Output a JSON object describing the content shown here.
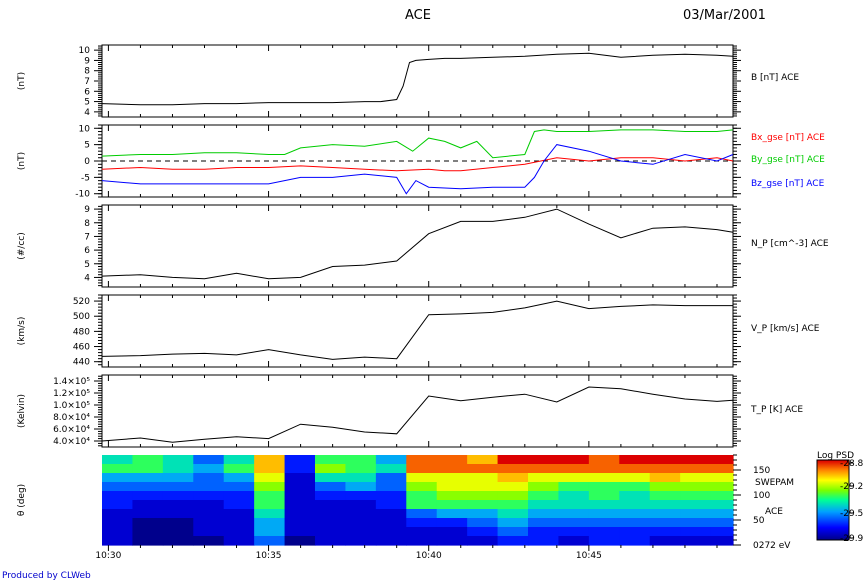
{
  "header": {
    "title": "ACE",
    "date": "03/Mar/2001"
  },
  "footer": {
    "produced_by": "Produced by CLWeb"
  },
  "time_axis": {
    "ticks": [
      "10:30",
      "10:35",
      "10:40",
      "10:45"
    ],
    "tick_minutes": [
      30,
      35,
      40,
      45
    ],
    "range_minutes": [
      29.8,
      49.5
    ]
  },
  "colors": {
    "bx": "#ff0000",
    "by": "#00cc00",
    "bz": "#0000ff",
    "line": "#000000"
  },
  "chart_data": [
    {
      "type": "line",
      "ylabel": "(nT)",
      "ylim": [
        3.5,
        10.5
      ],
      "yticks": [
        4,
        5,
        6,
        7,
        8,
        9,
        10
      ],
      "legend": [
        {
          "text": "B [nT] ACE",
          "color": "#000000"
        }
      ],
      "series": [
        {
          "name": "B [nT] ACE",
          "x": [
            29.8,
            31,
            32,
            33,
            34,
            35,
            36,
            37,
            38,
            38.5,
            39,
            39.2,
            39.4,
            39.6,
            40,
            40.5,
            41,
            42,
            43,
            44,
            45,
            45.5,
            46,
            47,
            48,
            49,
            49.5
          ],
          "y": [
            4.8,
            4.7,
            4.7,
            4.8,
            4.8,
            4.9,
            4.9,
            4.9,
            5.0,
            5.0,
            5.2,
            6.5,
            8.8,
            9.0,
            9.1,
            9.2,
            9.2,
            9.3,
            9.4,
            9.6,
            9.7,
            9.5,
            9.3,
            9.5,
            9.6,
            9.5,
            9.4
          ]
        }
      ]
    },
    {
      "type": "line",
      "ylabel": "(nT)",
      "ylim": [
        -11,
        11
      ],
      "yticks": [
        -10,
        -5,
        0,
        5,
        10
      ],
      "legend": [
        {
          "text": "Bx_gse [nT] ACE",
          "color": "#ff0000"
        },
        {
          "text": "By_gse [nT] ACE",
          "color": "#00cc00"
        },
        {
          "text": "Bz_gse [nT] ACE",
          "color": "#0000ff"
        }
      ],
      "zero_line": true,
      "series": [
        {
          "name": "Bx_gse [nT] ACE",
          "x": [
            29.8,
            31,
            32,
            33,
            34,
            35,
            36,
            37,
            38,
            39,
            40,
            40.5,
            41,
            42,
            43,
            43.5,
            44,
            45,
            46,
            47,
            48,
            49,
            49.5
          ],
          "y": [
            -2.5,
            -2,
            -2.5,
            -2.5,
            -2,
            -2,
            -1.5,
            -2,
            -2.5,
            -3,
            -2.5,
            -3,
            -3,
            -2,
            -1,
            0,
            1,
            0,
            1,
            1,
            0,
            1,
            0
          ]
        },
        {
          "name": "By_gse [nT] ACE",
          "x": [
            29.8,
            31,
            32,
            33,
            34,
            35,
            35.5,
            36,
            37,
            38,
            39,
            39.5,
            40,
            40.5,
            41,
            41.5,
            42,
            43,
            43.3,
            43.6,
            44,
            45,
            46,
            47,
            48,
            49,
            49.5
          ],
          "y": [
            1.5,
            2,
            2,
            2.5,
            2.5,
            2,
            2,
            4,
            5,
            4.5,
            6,
            3,
            7,
            6,
            4,
            6,
            1,
            2,
            9,
            9.5,
            9,
            9,
            9.5,
            9.5,
            9,
            9,
            9.5
          ]
        },
        {
          "name": "Bz_gse [nT] ACE",
          "x": [
            29.8,
            31,
            32,
            33,
            34,
            35,
            35.5,
            36,
            37,
            38,
            39,
            39.3,
            39.6,
            40,
            41,
            42,
            43,
            43.3,
            43.6,
            44,
            45,
            46,
            47,
            48,
            49,
            49.5
          ],
          "y": [
            -6,
            -7,
            -7,
            -7,
            -7,
            -7,
            -6,
            -5,
            -5,
            -4,
            -5,
            -10,
            -6,
            -8,
            -8.5,
            -8,
            -8,
            -5,
            0,
            5,
            3,
            0,
            -1,
            2,
            0,
            2
          ]
        }
      ]
    },
    {
      "type": "line",
      "ylabel": "(#/cc)",
      "ylim": [
        3.3,
        9.3
      ],
      "yticks": [
        4,
        5,
        6,
        7,
        8,
        9
      ],
      "legend": [
        {
          "text": "N_P [cm^-3] ACE",
          "color": "#000000"
        }
      ],
      "series": [
        {
          "name": "N_P [cm^-3] ACE",
          "x": [
            29.8,
            31,
            32,
            33,
            34,
            35,
            36,
            37,
            38,
            39,
            40,
            41,
            42,
            43,
            44,
            45,
            46,
            47,
            48,
            49,
            49.5
          ],
          "y": [
            4.1,
            4.2,
            4.0,
            3.9,
            4.3,
            3.9,
            4.0,
            4.8,
            4.9,
            5.2,
            7.2,
            8.1,
            8.1,
            8.4,
            9.0,
            7.9,
            6.9,
            7.6,
            7.7,
            7.5,
            7.3
          ]
        }
      ]
    },
    {
      "type": "line",
      "ylabel": "(km/s)",
      "ylim": [
        433,
        528
      ],
      "yticks": [
        440,
        460,
        480,
        500,
        520
      ],
      "legend": [
        {
          "text": "V_P [km/s] ACE",
          "color": "#000000"
        }
      ],
      "series": [
        {
          "name": "V_P [km/s] ACE",
          "x": [
            29.8,
            31,
            32,
            33,
            34,
            35,
            36,
            37,
            38,
            39,
            40,
            41,
            42,
            43,
            44,
            45,
            46,
            47,
            48,
            49,
            49.5
          ],
          "y": [
            447,
            448,
            450,
            451,
            449,
            456,
            449,
            443,
            446,
            444,
            502,
            503,
            505,
            511,
            520,
            510,
            513,
            515,
            514,
            514,
            514
          ]
        }
      ]
    },
    {
      "type": "line",
      "ylabel": "(Kelvin)",
      "ylim": [
        30000,
        150000
      ],
      "yticks": [
        40000,
        60000,
        80000,
        100000,
        120000,
        140000
      ],
      "ytick_labels": [
        "4.0×10⁴",
        "6.0×10⁴",
        "8.0×10⁴",
        "1.0×10⁵",
        "1.2×10⁵",
        "1.4×10⁵"
      ],
      "legend": [
        {
          "text": "T_P [K] ACE",
          "color": "#000000"
        }
      ],
      "series": [
        {
          "name": "T_P [K] ACE",
          "x": [
            29.8,
            31,
            32,
            33,
            34,
            35,
            36,
            37,
            38,
            39,
            40,
            41,
            42,
            43,
            44,
            45,
            46,
            47,
            48,
            49,
            49.5
          ],
          "y": [
            40000,
            45000,
            38000,
            43000,
            47000,
            44000,
            68000,
            63000,
            55000,
            52000,
            115000,
            107000,
            113000,
            118000,
            105000,
            130000,
            127000,
            118000,
            110000,
            106000,
            108000
          ]
        }
      ]
    },
    {
      "type": "heatmap",
      "ylabel": "θ (deg)",
      "ylim": [
        0,
        180
      ],
      "yticks": [
        0,
        50,
        100,
        150
      ],
      "ytick_labels": [
        "0272 eV",
        "50",
        "100",
        "150"
      ],
      "right_labels": [
        "SWEPAM",
        "ACE"
      ],
      "colorbar": {
        "title": "Log PSD",
        "ticks": [
          "-28.8",
          "-29.2",
          "-29.5",
          "-29.9"
        ],
        "range": [
          -29.9,
          -28.8
        ]
      },
      "x_edges": [
        29.8,
        30.75,
        31.7,
        32.65,
        33.6,
        34.55,
        35.5,
        36.45,
        37.4,
        38.35,
        39.3,
        40.25,
        41.2,
        42.15,
        43.1,
        44.05,
        45.0,
        45.95,
        46.9,
        47.85,
        48.8,
        49.5
      ],
      "rows": 10,
      "values": [
        [
          -29.4,
          -29.3,
          -29.4,
          -29.6,
          -29.4,
          -29.0,
          -29.7,
          -29.3,
          -29.3,
          -29.5,
          -28.9,
          -28.9,
          -29.0,
          -28.8,
          -28.8,
          -28.8,
          -28.9,
          -28.8,
          -28.8,
          -28.8,
          -28.8
        ],
        [
          -29.3,
          -29.3,
          -29.4,
          -29.5,
          -29.3,
          -29.0,
          -29.7,
          -29.2,
          -29.3,
          -29.4,
          -28.9,
          -28.9,
          -28.9,
          -28.9,
          -28.9,
          -28.9,
          -28.9,
          -28.9,
          -28.9,
          -28.9,
          -28.9
        ],
        [
          -29.5,
          -29.5,
          -29.5,
          -29.6,
          -29.5,
          -29.1,
          -29.8,
          -29.4,
          -29.4,
          -29.6,
          -29.1,
          -29.1,
          -29.1,
          -29.0,
          -29.1,
          -29.1,
          -29.1,
          -29.1,
          -29.0,
          -29.1,
          -29.1
        ],
        [
          -29.6,
          -29.6,
          -29.6,
          -29.6,
          -29.6,
          -29.2,
          -29.8,
          -29.6,
          -29.5,
          -29.6,
          -29.2,
          -29.1,
          -29.1,
          -29.1,
          -29.2,
          -29.3,
          -29.3,
          -29.3,
          -29.2,
          -29.2,
          -29.2
        ],
        [
          -29.7,
          -29.7,
          -29.7,
          -29.7,
          -29.7,
          -29.3,
          -29.8,
          -29.7,
          -29.7,
          -29.7,
          -29.3,
          -29.2,
          -29.2,
          -29.2,
          -29.3,
          -29.4,
          -29.3,
          -29.4,
          -29.3,
          -29.3,
          -29.3
        ],
        [
          -29.7,
          -29.8,
          -29.8,
          -29.8,
          -29.7,
          -29.3,
          -29.8,
          -29.8,
          -29.8,
          -29.7,
          -29.3,
          -29.3,
          -29.3,
          -29.3,
          -29.4,
          -29.4,
          -29.4,
          -29.4,
          -29.4,
          -29.4,
          -29.4
        ],
        [
          -29.8,
          -29.8,
          -29.8,
          -29.8,
          -29.8,
          -29.4,
          -29.8,
          -29.8,
          -29.8,
          -29.8,
          -29.6,
          -29.5,
          -29.5,
          -29.4,
          -29.5,
          -29.5,
          -29.5,
          -29.5,
          -29.5,
          -29.5,
          -29.5
        ],
        [
          -29.8,
          -29.9,
          -29.9,
          -29.8,
          -29.8,
          -29.5,
          -29.8,
          -29.8,
          -29.8,
          -29.8,
          -29.7,
          -29.7,
          -29.6,
          -29.5,
          -29.6,
          -29.6,
          -29.6,
          -29.6,
          -29.6,
          -29.6,
          -29.6
        ],
        [
          -29.8,
          -29.9,
          -29.9,
          -29.8,
          -29.8,
          -29.5,
          -29.8,
          -29.8,
          -29.8,
          -29.8,
          -29.8,
          -29.8,
          -29.7,
          -29.6,
          -29.7,
          -29.7,
          -29.7,
          -29.7,
          -29.7,
          -29.7,
          -29.7
        ],
        [
          -29.8,
          -29.9,
          -29.9,
          -29.9,
          -29.8,
          -29.6,
          -29.9,
          -29.8,
          -29.8,
          -29.8,
          -29.8,
          -29.8,
          -29.8,
          -29.7,
          -29.7,
          -29.8,
          -29.7,
          -29.7,
          -29.8,
          -29.8,
          -29.8
        ]
      ]
    }
  ]
}
